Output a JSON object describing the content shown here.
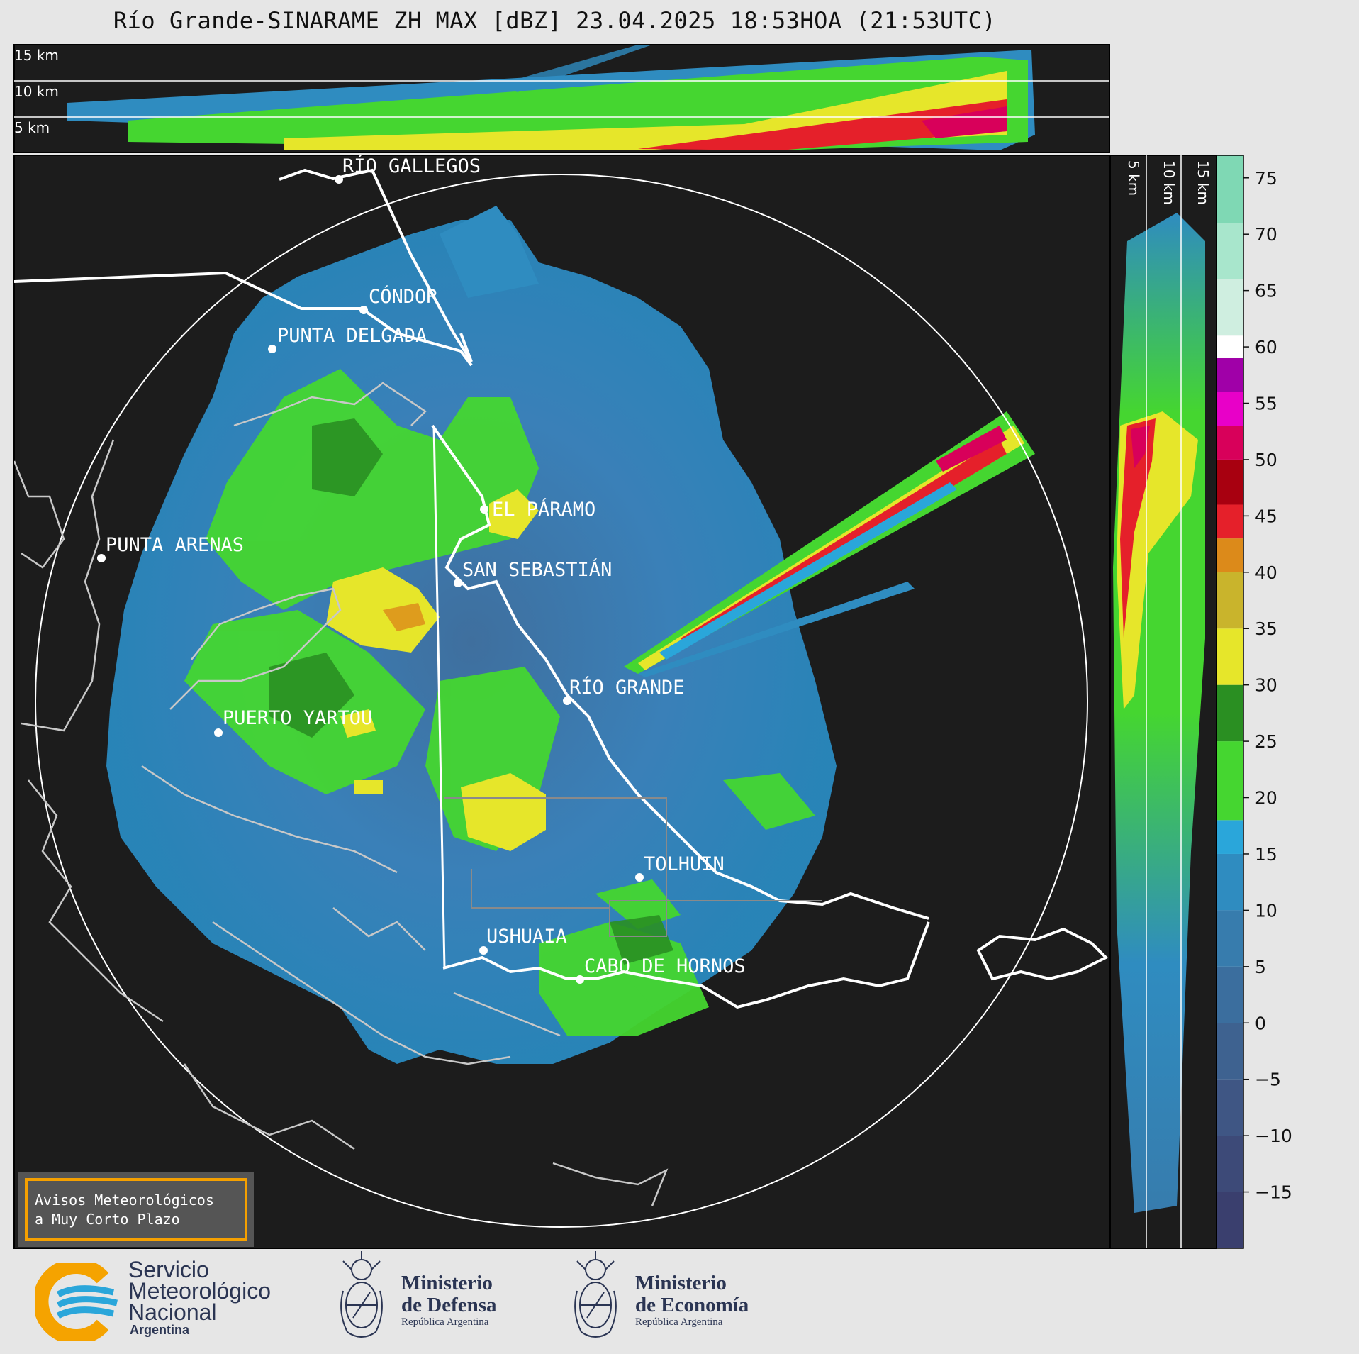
{
  "title": "Río Grande-SINARAME ZH MAX [dBZ] 23.04.2025 18:53HOA (21:53UTC)",
  "top_panel": {
    "altitude_labels": [
      "15 km",
      "10 km",
      "5 km"
    ]
  },
  "side_panel": {
    "altitude_labels": [
      "5 km",
      "10 km",
      "15 km"
    ]
  },
  "colorbar": {
    "unit": "dBZ",
    "ticks": [
      "75",
      "70",
      "65",
      "60",
      "55",
      "50",
      "45",
      "40",
      "35",
      "30",
      "25",
      "20",
      "15",
      "10",
      "5",
      "0",
      "−5",
      "−10",
      "−15"
    ],
    "color_bands": [
      {
        "from": -20,
        "to": -15,
        "color": "#3a3f6e"
      },
      {
        "from": -15,
        "to": -10,
        "color": "#3d4a78"
      },
      {
        "from": -10,
        "to": -5,
        "color": "#3f5684"
      },
      {
        "from": -5,
        "to": 0,
        "color": "#3e6290"
      },
      {
        "from": 0,
        "to": 5,
        "color": "#3b6e9e"
      },
      {
        "from": 5,
        "to": 10,
        "color": "#377cad"
      },
      {
        "from": 10,
        "to": 15,
        "color": "#2f8cc0"
      },
      {
        "from": 15,
        "to": 18,
        "color": "#2aa6da"
      },
      {
        "from": 18,
        "to": 25,
        "color": "#45d630"
      },
      {
        "from": 25,
        "to": 30,
        "color": "#2a8f22"
      },
      {
        "from": 30,
        "to": 35,
        "color": "#e6e62a"
      },
      {
        "from": 35,
        "to": 40,
        "color": "#c9b42c"
      },
      {
        "from": 40,
        "to": 43,
        "color": "#dc8a1a"
      },
      {
        "from": 43,
        "to": 46,
        "color": "#e5202a"
      },
      {
        "from": 46,
        "to": 50,
        "color": "#a80010"
      },
      {
        "from": 50,
        "to": 53,
        "color": "#d8005a"
      },
      {
        "from": 53,
        "to": 56,
        "color": "#e800c8"
      },
      {
        "from": 56,
        "to": 59,
        "color": "#a000a8"
      },
      {
        "from": 59,
        "to": 61,
        "color": "#ffffff"
      },
      {
        "from": 61,
        "to": 66,
        "color": "#cfeee0"
      },
      {
        "from": 66,
        "to": 71,
        "color": "#a8e6cc"
      },
      {
        "from": 71,
        "to": 77,
        "color": "#7fd8b4"
      }
    ]
  },
  "map": {
    "cities": [
      {
        "name": "RÍO GALLEGOS"
      },
      {
        "name": "CÓNDOR"
      },
      {
        "name": "PUNTA DELGADA"
      },
      {
        "name": "PUNTA ARENAS"
      },
      {
        "name": "EL PÁRAMO"
      },
      {
        "name": "SAN SEBASTIÁN"
      },
      {
        "name": "RÍO GRANDE"
      },
      {
        "name": "PUERTO YARTOU"
      },
      {
        "name": "TOLHUIN"
      },
      {
        "name": "USHUAIA"
      },
      {
        "name": "CABO DE HORNOS"
      }
    ],
    "colors": {
      "background": "#1c1c1c",
      "range_ring": "#ffffff",
      "coast_thin": "#c8c8c8",
      "border": "#ffffff"
    }
  },
  "notice": {
    "line1": "Avisos Meteorológicos",
    "line2": "a Muy Corto Plazo"
  },
  "logos": {
    "smn": {
      "line1": "Servicio",
      "line2": "Meteorológico",
      "line3": "Nacional",
      "country": "Argentina"
    },
    "defensa": {
      "line1": "Ministerio",
      "line2": "de Defensa",
      "sub": "República Argentina"
    },
    "economia": {
      "line1": "Ministerio",
      "line2": "de Economía",
      "sub": "República Argentina"
    }
  }
}
